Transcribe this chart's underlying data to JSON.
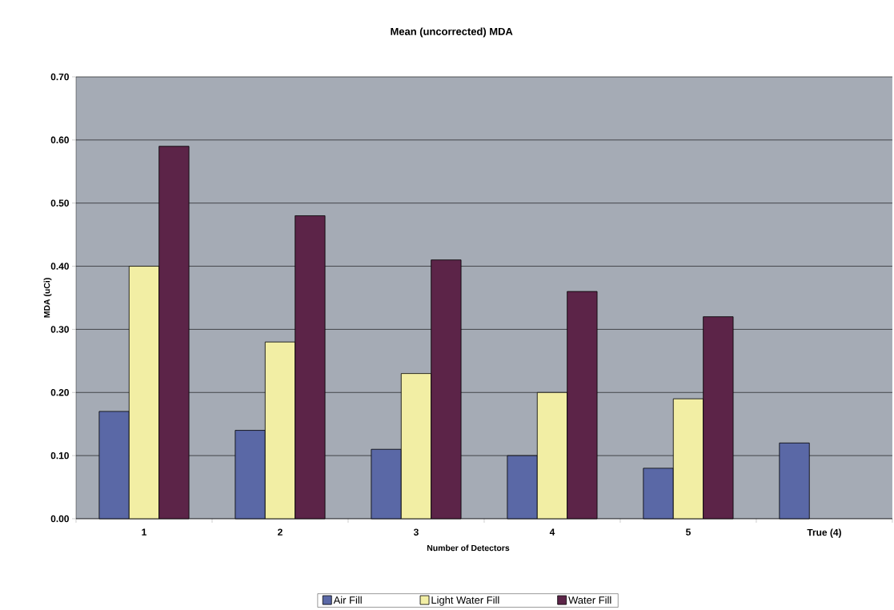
{
  "chart_data": {
    "type": "bar",
    "title": "Mean (uncorrected) MDA",
    "xlabel": "Number of Detectors",
    "ylabel": "MDA (uCi)",
    "categories": [
      "1",
      "2",
      "3",
      "4",
      "5",
      "True (4)"
    ],
    "series": [
      {
        "name": "Air Fill",
        "color": "#5a68a6",
        "values": [
          0.17,
          0.14,
          0.11,
          0.1,
          0.08,
          0.12
        ]
      },
      {
        "name": "Light Water Fill",
        "color": "#f2eea4",
        "values": [
          0.4,
          0.28,
          0.23,
          0.2,
          0.19,
          null
        ]
      },
      {
        "name": "Water Fill",
        "color": "#5c2448",
        "values": [
          0.59,
          0.48,
          0.41,
          0.36,
          0.32,
          null
        ]
      }
    ],
    "ylim": [
      0,
      0.7
    ],
    "yticks": [
      {
        "value": 0,
        "label": "0.00"
      },
      {
        "value": 0.1,
        "label": "0.10"
      },
      {
        "value": 0.2,
        "label": "0.20"
      },
      {
        "value": 0.3,
        "label": "0.30"
      },
      {
        "value": 0.4,
        "label": "0.40"
      },
      {
        "value": 0.5,
        "label": "0.50"
      },
      {
        "value": 0.6,
        "label": "0.60"
      },
      {
        "value": 0.7,
        "label": "0.70"
      }
    ],
    "grid": "y",
    "legend": "bottom"
  }
}
